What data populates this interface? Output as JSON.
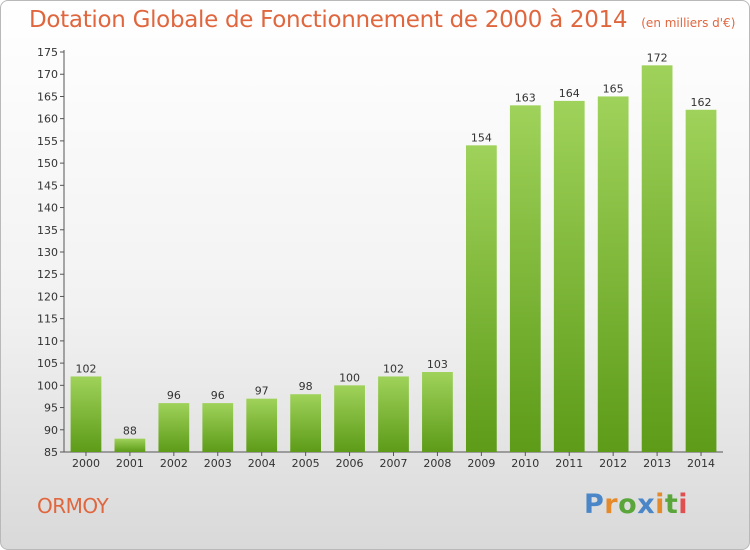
{
  "chart_data": {
    "type": "bar",
    "title": "Dotation Globale de Fonctionnement de 2000 à 2014",
    "subtitle": "(en milliers d'€)",
    "xlabel": "",
    "ylabel": "",
    "categories": [
      "2000",
      "2001",
      "2002",
      "2003",
      "2004",
      "2005",
      "2006",
      "2007",
      "2008",
      "2009",
      "2010",
      "2011",
      "2012",
      "2013",
      "2014"
    ],
    "values": [
      102,
      88,
      96,
      96,
      97,
      98,
      100,
      102,
      103,
      154,
      163,
      164,
      165,
      172,
      162
    ],
    "ylim": [
      85,
      175
    ],
    "yticks": [
      85,
      90,
      95,
      100,
      105,
      110,
      115,
      120,
      125,
      130,
      135,
      140,
      145,
      150,
      155,
      160,
      165,
      170,
      175
    ],
    "grid": false,
    "colors": {
      "bar_light": "#9fd25a",
      "bar_dark": "#5d9b18",
      "text": "#e0663e"
    }
  },
  "commune": "ORMOY",
  "logo": {
    "letters": [
      "P",
      "r",
      "o",
      "x",
      "i",
      "t",
      "i"
    ],
    "colors": [
      "#4a86c8",
      "#e48a2a",
      "#5aa63a",
      "#4a86c8",
      "#e48a2a",
      "#5aa63a",
      "#e05050"
    ]
  }
}
